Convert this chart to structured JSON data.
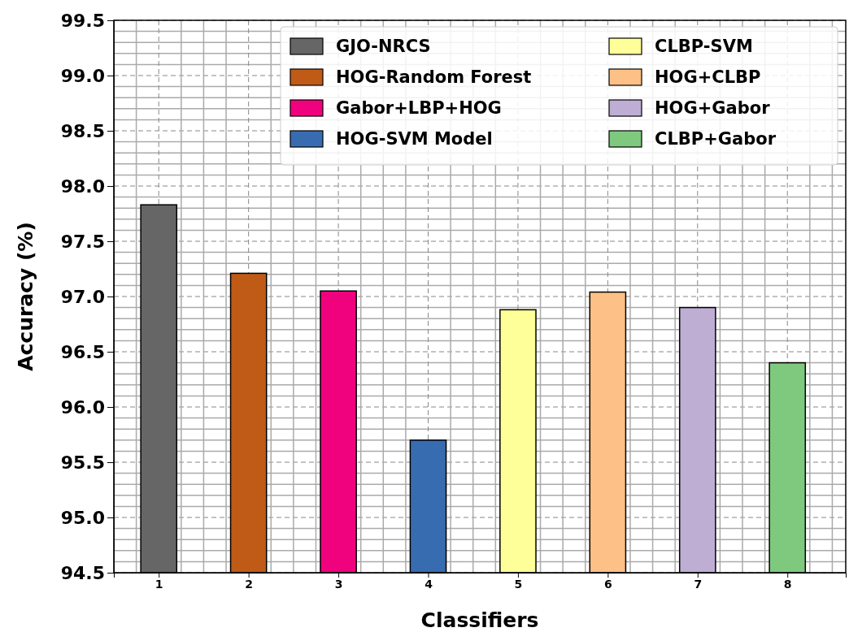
{
  "chart_data": {
    "type": "bar",
    "xlabel": "Classifiers",
    "ylabel": "Accuracy (%)",
    "categories": [
      "1",
      "2",
      "3",
      "4",
      "5",
      "6",
      "7",
      "8"
    ],
    "series": [
      {
        "name": "GJO-NRCS",
        "color": "#666666",
        "values": [
          97.83,
          null,
          null,
          null,
          null,
          null,
          null,
          null
        ]
      },
      {
        "name": "HOG-Random Forest",
        "color": "#bf5b17",
        "values": [
          null,
          97.21,
          null,
          null,
          null,
          null,
          null,
          null
        ]
      },
      {
        "name": "Gabor+LBP+HOG",
        "color": "#f0027f",
        "values": [
          null,
          null,
          97.05,
          null,
          null,
          null,
          null,
          null
        ]
      },
      {
        "name": "HOG-SVM Model",
        "color": "#386cb0",
        "values": [
          null,
          null,
          null,
          95.7,
          null,
          null,
          null,
          null
        ]
      },
      {
        "name": "CLBP-SVM",
        "color": "#ffff99",
        "values": [
          null,
          null,
          null,
          null,
          96.88,
          null,
          null,
          null
        ]
      },
      {
        "name": "HOG+CLBP",
        "color": "#fdc086",
        "values": [
          null,
          null,
          null,
          null,
          null,
          97.04,
          null,
          null
        ]
      },
      {
        "name": "HOG+Gabor",
        "color": "#beaed4",
        "values": [
          null,
          null,
          null,
          null,
          null,
          null,
          96.9,
          null
        ]
      },
      {
        "name": "CLBP+Gabor",
        "color": "#7fc97f",
        "values": [
          null,
          null,
          null,
          null,
          null,
          null,
          null,
          96.4
        ]
      }
    ],
    "ylim": [
      94.5,
      99.5
    ],
    "yticks": [
      {
        "value": 94.5,
        "label": "94.5"
      },
      {
        "value": 95,
        "label": "95.0"
      },
      {
        "value": 95.5,
        "label": "95.5"
      },
      {
        "value": 96,
        "label": "96.0"
      },
      {
        "value": 96.5,
        "label": "96.5"
      },
      {
        "value": 97,
        "label": "97.0"
      },
      {
        "value": 97.5,
        "label": "97.5"
      },
      {
        "value": 98,
        "label": "98.0"
      },
      {
        "value": 98.5,
        "label": "98.5"
      },
      {
        "value": 99,
        "label": "99.0"
      },
      {
        "value": 99.5,
        "label": "99.5"
      }
    ],
    "grid": true,
    "legend": "top right"
  }
}
